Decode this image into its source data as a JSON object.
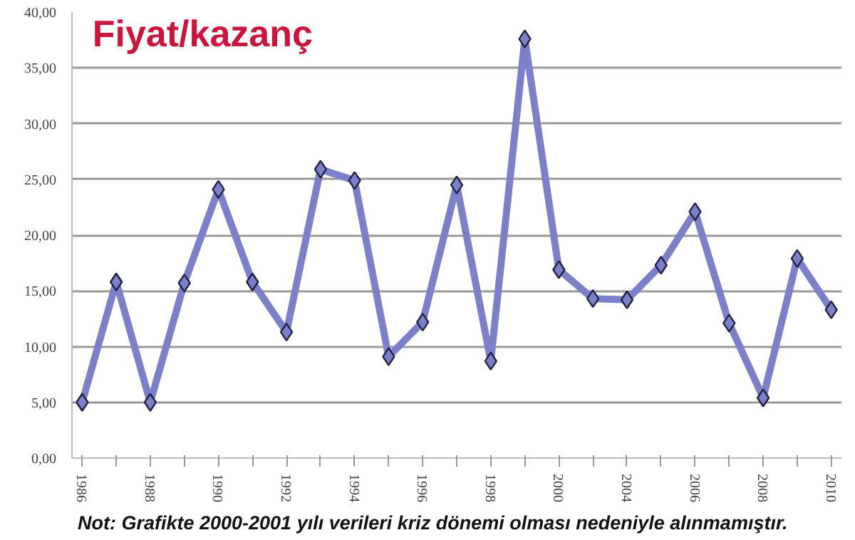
{
  "chart_data": {
    "type": "line",
    "title": "Fiyat/kazanç",
    "categories": [
      "1986",
      null,
      "1988",
      null,
      "1990",
      null,
      "1992",
      null,
      "1994",
      null,
      "1996",
      null,
      "1998",
      null,
      "2000",
      null,
      "2004",
      null,
      "2006",
      null,
      "2008",
      null,
      "2010"
    ],
    "series": [
      {
        "color": "#7b80c8",
        "values": [
          5.0,
          15.8,
          5.0,
          15.7,
          24.1,
          15.8,
          11.3,
          25.9,
          24.9,
          9.1,
          12.2,
          24.5,
          8.7,
          37.6,
          16.9,
          14.3,
          14.2,
          17.3,
          22.1,
          12.1,
          5.4,
          17.9,
          13.3
        ]
      }
    ],
    "ylim": [
      0,
      40
    ],
    "yticks": [
      {
        "value": 0,
        "label": "0,00"
      },
      {
        "value": 5,
        "label": "5,00"
      },
      {
        "value": 10,
        "label": "10,00"
      },
      {
        "value": 15,
        "label": "15,00"
      },
      {
        "value": 20,
        "label": "20,00"
      },
      {
        "value": 25,
        "label": "25,00"
      },
      {
        "value": 30,
        "label": "30,00"
      },
      {
        "value": 35,
        "label": "35,00"
      },
      {
        "value": 40,
        "label": "40,00"
      }
    ],
    "grid": "y",
    "marker": "diamond",
    "line_style": "solid",
    "annotations": [
      "Not: Grafikte 2000-2001 yılı verileri kriz dönemi olması nedeniyle alınmamıştır."
    ]
  }
}
